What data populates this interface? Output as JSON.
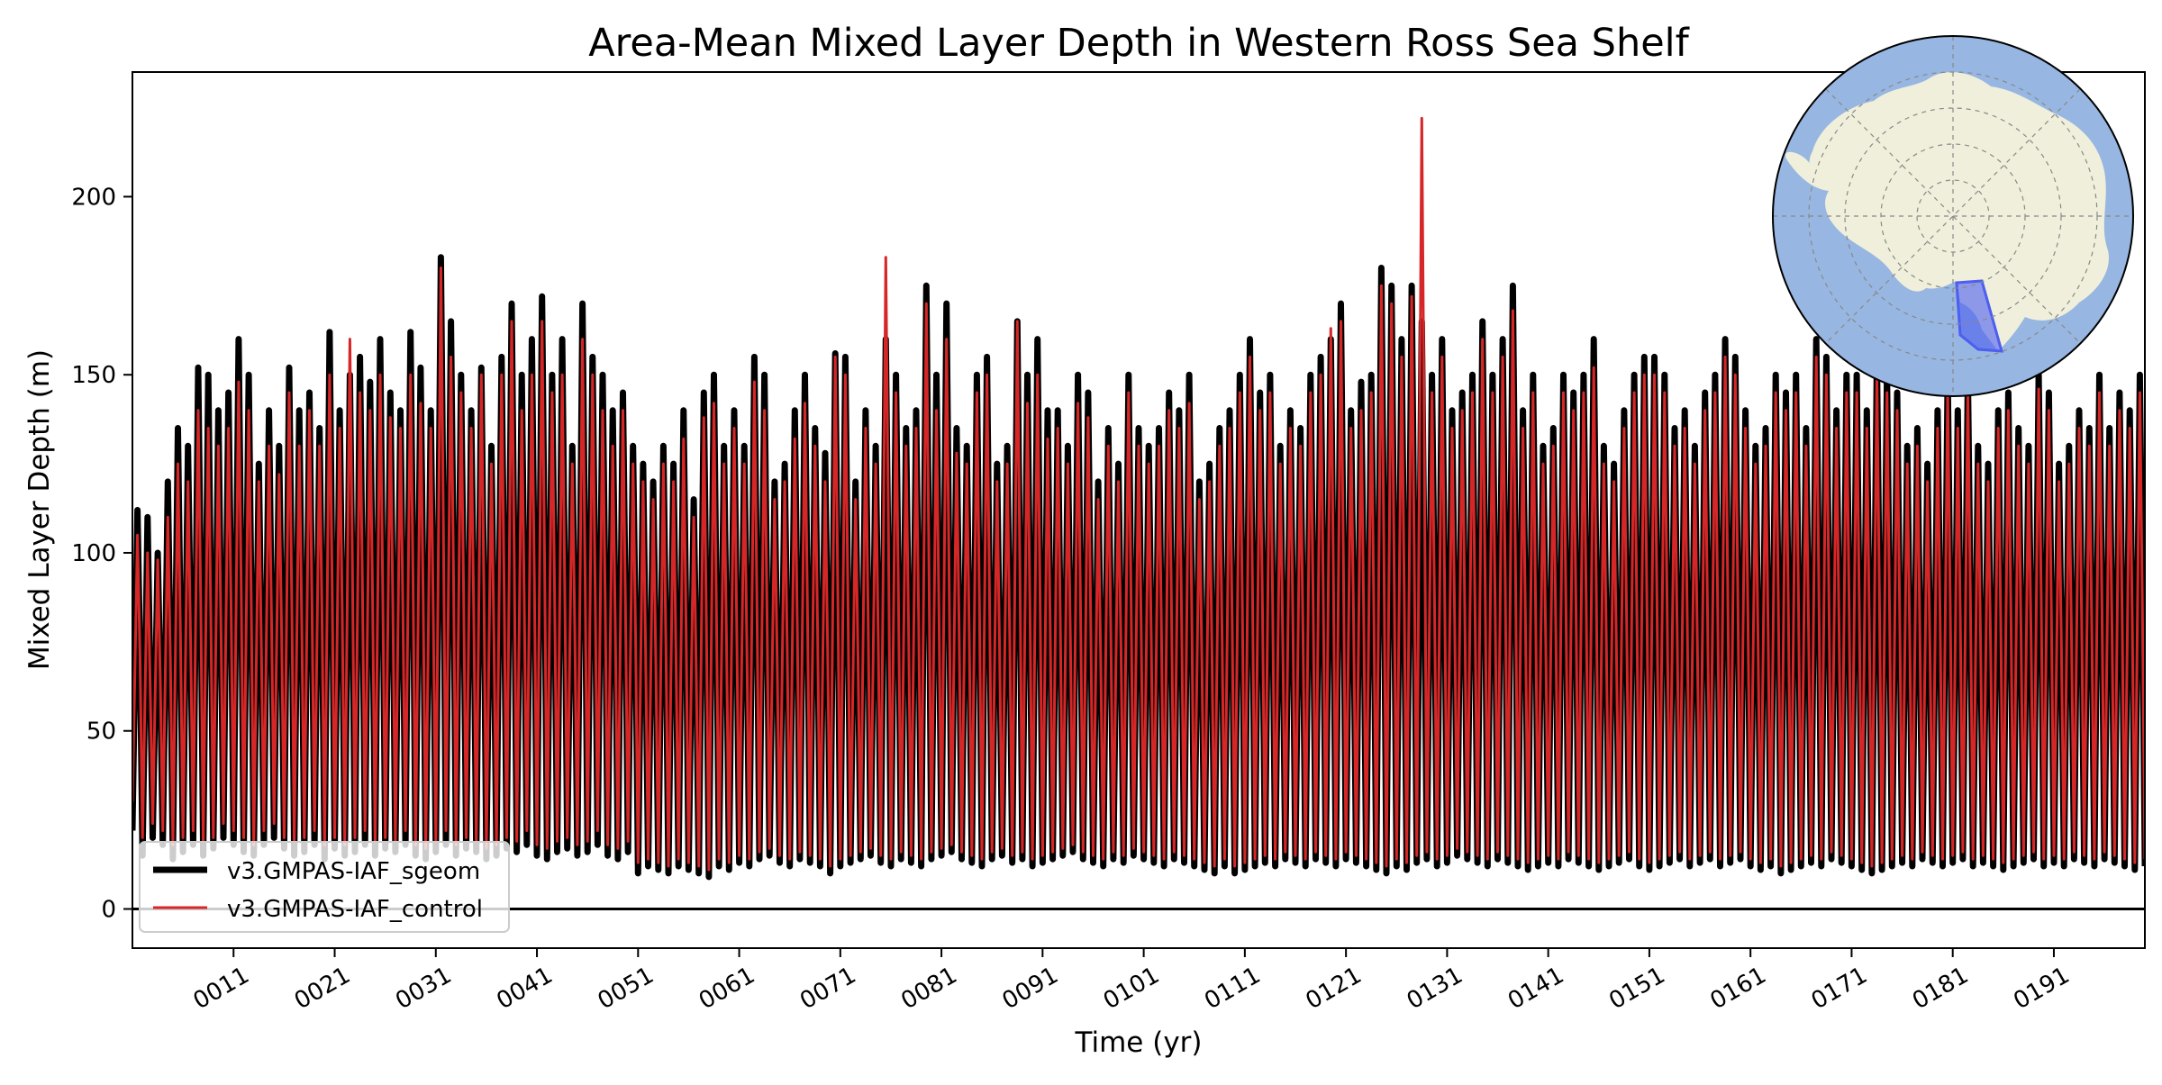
{
  "chart_data": {
    "type": "line",
    "title": "Area-Mean Mixed Layer Depth in Western Ross Sea Shelf",
    "xlabel": "Time (yr)",
    "ylabel": "Mixed Layer Depth (m)",
    "xlim": [
      1,
      200
    ],
    "ylim": [
      -11,
      235
    ],
    "x_ticks": [
      11,
      21,
      31,
      41,
      51,
      61,
      71,
      81,
      91,
      101,
      111,
      121,
      131,
      141,
      151,
      161,
      171,
      181,
      191
    ],
    "x_tick_labels": [
      "0011",
      "0021",
      "0031",
      "0041",
      "0051",
      "0061",
      "0071",
      "0081",
      "0091",
      "0101",
      "0111",
      "0121",
      "0131",
      "0141",
      "0151",
      "0161",
      "0171",
      "0181",
      "0191"
    ],
    "y_ticks": [
      0,
      50,
      100,
      150,
      200
    ],
    "y_tick_labels": [
      "0",
      "50",
      "100",
      "150",
      "200"
    ],
    "grid": false,
    "reference_line_y": 0,
    "legend_position": "bottom-left",
    "series": [
      {
        "name": "v3.GMPAS-IAF_sgeom",
        "color": "#000000",
        "x_start_year": 1,
        "samples_per_year": 4,
        "annual_max": [
          112,
          110,
          100,
          120,
          135,
          130,
          152,
          150,
          140,
          145,
          160,
          150,
          125,
          140,
          130,
          152,
          140,
          145,
          135,
          162,
          140,
          150,
          155,
          148,
          160,
          145,
          140,
          162,
          152,
          140,
          183,
          165,
          150,
          140,
          152,
          130,
          155,
          170,
          150,
          160,
          172,
          150,
          160,
          130,
          170,
          155,
          150,
          140,
          145,
          130,
          125,
          120,
          130,
          125,
          140,
          115,
          145,
          150,
          130,
          140,
          130,
          155,
          150,
          120,
          125,
          140,
          150,
          135,
          128,
          156,
          155,
          120,
          140,
          130,
          160,
          150,
          135,
          140,
          175,
          150,
          170,
          135,
          130,
          150,
          155,
          125,
          130,
          165,
          150,
          160,
          140,
          140,
          130,
          150,
          145,
          120,
          135,
          125,
          150,
          135,
          130,
          135,
          145,
          140,
          150,
          120,
          125,
          135,
          140,
          150,
          160,
          145,
          150,
          130,
          140,
          135,
          150,
          155,
          160,
          170,
          140,
          148,
          150,
          180,
          175,
          160,
          175,
          165,
          150,
          160,
          140,
          145,
          150,
          165,
          150,
          160,
          175,
          140,
          150,
          130,
          135,
          150,
          145,
          150,
          160,
          130,
          125,
          140,
          150,
          155,
          155,
          150,
          135,
          140,
          130,
          145,
          150,
          160,
          155,
          140,
          130,
          135,
          150,
          145,
          150,
          135,
          160,
          155,
          140,
          150,
          150,
          140,
          155,
          150,
          145,
          130,
          135,
          125,
          140,
          150,
          140,
          150,
          130,
          125,
          140,
          145,
          135,
          130,
          150,
          145,
          125,
          130,
          140,
          135,
          150,
          135,
          145,
          140,
          150,
          130
        ],
        "annual_min": [
          22,
          15,
          20,
          18,
          14,
          16,
          18,
          15,
          17,
          20,
          18,
          16,
          15,
          18,
          20,
          17,
          15,
          16,
          18,
          14,
          17,
          15,
          16,
          18,
          15,
          17,
          16,
          18,
          15,
          14,
          16,
          18,
          15,
          17,
          16,
          14,
          15,
          17,
          16,
          18,
          15,
          14,
          16,
          17,
          15,
          16,
          18,
          15,
          14,
          16,
          10,
          12,
          11,
          10,
          12,
          11,
          10,
          9,
          12,
          11,
          13,
          12,
          14,
          15,
          13,
          12,
          14,
          13,
          12,
          10,
          12,
          13,
          14,
          15,
          13,
          12,
          14,
          13,
          12,
          14,
          15,
          16,
          14,
          13,
          12,
          14,
          15,
          13,
          14,
          12,
          13,
          14,
          15,
          16,
          14,
          13,
          12,
          14,
          13,
          15,
          14,
          13,
          12,
          14,
          13,
          12,
          11,
          10,
          12,
          10,
          11,
          12,
          13,
          12,
          14,
          13,
          12,
          14,
          13,
          12,
          14,
          13,
          12,
          11,
          10,
          12,
          11,
          13,
          14,
          12,
          13,
          15,
          14,
          13,
          12,
          14,
          13,
          12,
          11,
          12,
          13,
          12,
          14,
          13,
          12,
          11,
          12,
          13,
          14,
          12,
          11,
          12,
          13,
          14,
          12,
          13,
          14,
          12,
          13,
          14,
          12,
          11,
          12,
          10,
          11,
          12,
          13,
          12,
          14,
          13,
          12,
          11,
          10,
          11,
          12,
          13,
          12,
          14,
          13,
          12,
          13,
          14,
          12,
          13,
          12,
          11,
          12,
          13,
          14,
          12,
          13,
          12,
          14,
          13,
          12,
          14,
          13,
          12,
          11,
          12
        ]
      },
      {
        "name": "v3.GMPAS-IAF_control",
        "color": "#d62728",
        "x_start_year": 1,
        "samples_per_year": 4,
        "annual_max": [
          105,
          100,
          98,
          110,
          125,
          120,
          140,
          135,
          130,
          135,
          148,
          140,
          120,
          130,
          122,
          145,
          130,
          140,
          130,
          150,
          135,
          160,
          145,
          140,
          150,
          138,
          135,
          150,
          142,
          135,
          180,
          155,
          145,
          135,
          150,
          125,
          150,
          165,
          140,
          150,
          165,
          145,
          150,
          125,
          160,
          150,
          140,
          130,
          140,
          125,
          120,
          115,
          125,
          120,
          132,
          110,
          138,
          142,
          125,
          135,
          125,
          148,
          140,
          115,
          120,
          132,
          142,
          130,
          120,
          155,
          150,
          115,
          135,
          125,
          183,
          145,
          130,
          135,
          170,
          140,
          160,
          128,
          125,
          145,
          150,
          120,
          125,
          165,
          142,
          150,
          132,
          135,
          125,
          142,
          138,
          115,
          130,
          120,
          145,
          130,
          125,
          130,
          140,
          135,
          142,
          115,
          120,
          130,
          135,
          145,
          155,
          140,
          145,
          125,
          135,
          130,
          145,
          150,
          163,
          165,
          135,
          140,
          145,
          175,
          170,
          155,
          172,
          222,
          145,
          155,
          135,
          140,
          145,
          160,
          145,
          155,
          168,
          135,
          145,
          125,
          130,
          145,
          140,
          145,
          152,
          125,
          120,
          135,
          145,
          150,
          150,
          145,
          130,
          135,
          125,
          140,
          145,
          155,
          150,
          135,
          125,
          130,
          145,
          140,
          145,
          130,
          155,
          150,
          135,
          145,
          145,
          135,
          150,
          145,
          140,
          125,
          130,
          120,
          135,
          145,
          135,
          145,
          125,
          120,
          135,
          140,
          130,
          125,
          146,
          140,
          120,
          125,
          135,
          130,
          145,
          130,
          140,
          135,
          145,
          125
        ],
        "annual_min": [
          30,
          20,
          24,
          22,
          18,
          20,
          22,
          19,
          20,
          24,
          22,
          20,
          18,
          22,
          24,
          20,
          19,
          20,
          22,
          18,
          20,
          18,
          20,
          22,
          19,
          20,
          19,
          22,
          18,
          17,
          19,
          22,
          18,
          20,
          19,
          17,
          18,
          20,
          19,
          22,
          18,
          17,
          19,
          20,
          18,
          19,
          22,
          18,
          17,
          19,
          13,
          14,
          13,
          12,
          14,
          13,
          12,
          11,
          14,
          13,
          15,
          14,
          16,
          17,
          15,
          14,
          16,
          15,
          14,
          12,
          14,
          15,
          16,
          17,
          15,
          14,
          16,
          15,
          14,
          16,
          17,
          18,
          16,
          15,
          14,
          16,
          17,
          15,
          16,
          14,
          15,
          16,
          17,
          18,
          16,
          15,
          14,
          16,
          15,
          17,
          16,
          15,
          14,
          16,
          15,
          14,
          13,
          12,
          14,
          12,
          13,
          14,
          15,
          14,
          16,
          15,
          14,
          16,
          15,
          14,
          16,
          15,
          14,
          13,
          12,
          14,
          13,
          15,
          16,
          14,
          15,
          17,
          16,
          15,
          14,
          16,
          15,
          14,
          13,
          14,
          15,
          14,
          16,
          15,
          14,
          13,
          14,
          15,
          16,
          14,
          13,
          14,
          15,
          16,
          14,
          15,
          16,
          14,
          15,
          16,
          14,
          13,
          14,
          12,
          13,
          14,
          15,
          14,
          16,
          15,
          14,
          13,
          12,
          13,
          14,
          15,
          14,
          16,
          15,
          14,
          15,
          16,
          14,
          15,
          14,
          13,
          14,
          15,
          16,
          14,
          15,
          14,
          16,
          15,
          14,
          16,
          15,
          14,
          13,
          14
        ]
      }
    ],
    "inset_map": {
      "projection": "south-polar-stereographic",
      "ocean_color": "#97b6e1",
      "land_color": "#efefdb",
      "region_color": "#4d5ef0",
      "highlighted_region": "Western Ross Sea Shelf"
    }
  }
}
